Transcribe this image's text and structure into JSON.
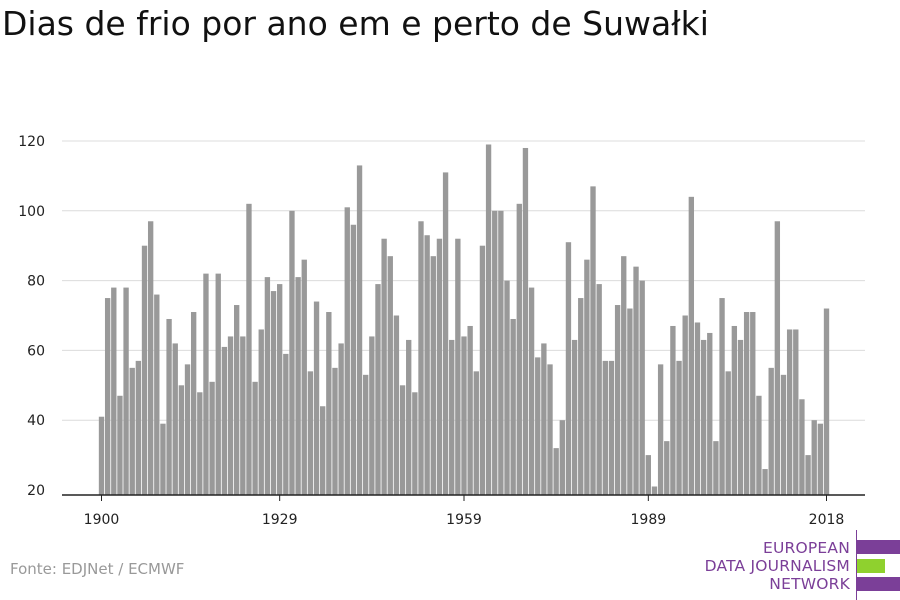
{
  "chart_data": {
    "type": "bar",
    "title": "Dias de frio por ano em e perto de Suwałki",
    "xlabel": "",
    "ylabel": "",
    "x_start": 1900,
    "x_end": 2018,
    "xticks": [
      1900,
      1929,
      1959,
      1989,
      2018
    ],
    "yticks": [
      20,
      40,
      60,
      80,
      100,
      120
    ],
    "ylim": [
      20,
      123
    ],
    "grid": true,
    "values": [
      41,
      75,
      78,
      47,
      78,
      55,
      57,
      90,
      97,
      76,
      39,
      69,
      62,
      50,
      56,
      71,
      48,
      82,
      51,
      82,
      61,
      64,
      73,
      64,
      102,
      51,
      66,
      81,
      77,
      79,
      59,
      100,
      81,
      86,
      54,
      74,
      44,
      71,
      55,
      62,
      101,
      96,
      113,
      53,
      64,
      79,
      92,
      87,
      70,
      50,
      63,
      48,
      97,
      93,
      87,
      92,
      111,
      63,
      92,
      64,
      67,
      54,
      90,
      119,
      100,
      100,
      80,
      69,
      102,
      118,
      78,
      58,
      62,
      56,
      32,
      40,
      91,
      63,
      75,
      86,
      107,
      79,
      57,
      57,
      73,
      87,
      72,
      84,
      80,
      30,
      21,
      56,
      34,
      67,
      57,
      70,
      104,
      68,
      63,
      65,
      34,
      75,
      54,
      67,
      63,
      71,
      71,
      47,
      26,
      55,
      97,
      53,
      66,
      66,
      46,
      30,
      40,
      39,
      72
    ],
    "bar_color": "#999999"
  },
  "source": "Fonte: EDJNet / ECMWF",
  "logo": {
    "line1": "EUROPEAN",
    "line2": "DATA JOURNALISM",
    "line3": "NETWORK",
    "color_primary": "#7b3f98",
    "color_accent": "#8fd12e"
  }
}
